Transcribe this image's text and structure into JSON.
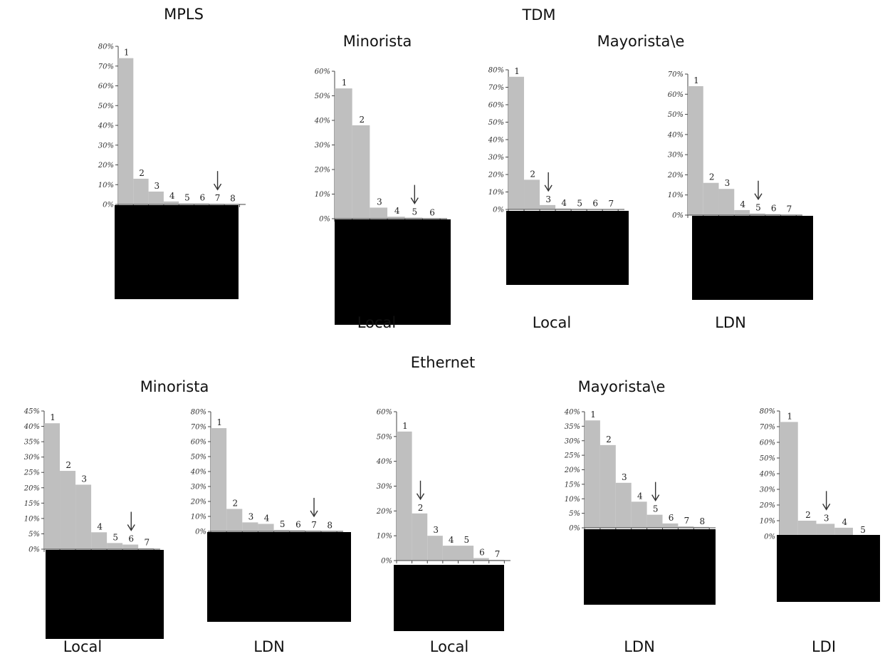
{
  "headers": {
    "mpls": "MPLS",
    "tdm": "TDM",
    "ethernet": "Ethernet",
    "tdm_minorista": "Minorista",
    "tdm_mayorista": "Mayorista\\e",
    "eth_minorista": "Minorista",
    "eth_mayorista": "Mayorista\\e"
  },
  "colors": {
    "bar": "#bfbfbf",
    "redaction": "#000000",
    "axis": "#444444"
  },
  "chart_data": [
    {
      "id": "mpls",
      "type": "bar",
      "title": "",
      "xlabel": "",
      "categories": [
        "1",
        "2",
        "3",
        "4",
        "5",
        "6",
        "7",
        "8"
      ],
      "values": [
        74,
        13,
        6.5,
        1.5,
        0.5,
        0.5,
        0.3,
        0.2
      ],
      "ylim": [
        0,
        80
      ],
      "yticks": [
        0,
        10,
        20,
        30,
        40,
        50,
        60,
        70,
        80
      ],
      "ytick_labels": [
        "0%",
        "10%",
        "20%",
        "30%",
        "40%",
        "50%",
        "60%",
        "70%",
        "80%"
      ],
      "arrow_at": "7",
      "grid": false
    },
    {
      "id": "tdm-minorista-local",
      "type": "bar",
      "title": "",
      "xlabel": "Local",
      "categories": [
        "1",
        "2",
        "3",
        "4",
        "5",
        "6"
      ],
      "values": [
        53,
        38,
        4.5,
        0.8,
        0.4,
        0.2
      ],
      "ylim": [
        0,
        60
      ],
      "yticks": [
        0,
        10,
        20,
        30,
        40,
        50,
        60
      ],
      "ytick_labels": [
        "0%",
        "10%",
        "20%",
        "30%",
        "40%",
        "50%",
        "60%"
      ],
      "arrow_at": "5",
      "grid": false
    },
    {
      "id": "tdm-mayorista-local",
      "type": "bar",
      "title": "",
      "xlabel": "Local",
      "categories": [
        "1",
        "2",
        "3",
        "4",
        "5",
        "6",
        "7"
      ],
      "values": [
        76,
        17,
        2.5,
        0.5,
        0.3,
        0.2,
        0.1
      ],
      "ylim": [
        0,
        80
      ],
      "yticks": [
        0,
        10,
        20,
        30,
        40,
        50,
        60,
        70,
        80
      ],
      "ytick_labels": [
        "0%",
        "10%",
        "20%",
        "30%",
        "40%",
        "50%",
        "60%",
        "70%",
        "80%"
      ],
      "arrow_at": "3",
      "grid": false
    },
    {
      "id": "tdm-mayorista-ldn",
      "type": "bar",
      "title": "",
      "xlabel": "LDN",
      "categories": [
        "1",
        "2",
        "3",
        "4",
        "5",
        "6",
        "7"
      ],
      "values": [
        64,
        16,
        13,
        2.5,
        0.8,
        0.5,
        0.2
      ],
      "ylim": [
        0,
        70
      ],
      "yticks": [
        0,
        10,
        20,
        30,
        40,
        50,
        60,
        70
      ],
      "ytick_labels": [
        "0%",
        "10%",
        "20%",
        "30%",
        "40%",
        "50%",
        "60%",
        "70%"
      ],
      "arrow_at": "5",
      "grid": false
    },
    {
      "id": "eth-minorista-local",
      "type": "bar",
      "title": "",
      "xlabel": "Local",
      "categories": [
        "1",
        "2",
        "3",
        "4",
        "5",
        "6",
        "7"
      ],
      "values": [
        41,
        25.5,
        21,
        5.5,
        2,
        1.5,
        0.3
      ],
      "ylim": [
        0,
        45
      ],
      "yticks": [
        0,
        5,
        10,
        15,
        20,
        25,
        30,
        35,
        40,
        45
      ],
      "ytick_labels": [
        "0%",
        "5%",
        "10%",
        "15%",
        "20%",
        "25%",
        "30%",
        "35%",
        "40%",
        "45%"
      ],
      "arrow_at": "6",
      "grid": false
    },
    {
      "id": "eth-minorista-ldn",
      "type": "bar",
      "title": "",
      "xlabel": "LDN",
      "categories": [
        "1",
        "2",
        "3",
        "4",
        "5",
        "6",
        "7",
        "8"
      ],
      "values": [
        69,
        15,
        6,
        5,
        1,
        0.8,
        0.5,
        0.3
      ],
      "ylim": [
        0,
        80
      ],
      "yticks": [
        0,
        10,
        20,
        30,
        40,
        50,
        60,
        70,
        80
      ],
      "ytick_labels": [
        "0%",
        "10%",
        "20%",
        "30%",
        "40%",
        "50%",
        "60%",
        "70%",
        "80%"
      ],
      "arrow_at": "7",
      "grid": false
    },
    {
      "id": "eth-minorista-local-2",
      "type": "bar",
      "title": "",
      "xlabel": "Local",
      "categories": [
        "1",
        "2",
        "3",
        "4",
        "5",
        "6",
        "7"
      ],
      "values": [
        52,
        19,
        10,
        6,
        6,
        1,
        0.3
      ],
      "ylim": [
        0,
        60
      ],
      "yticks": [
        0,
        10,
        20,
        30,
        40,
        50,
        60
      ],
      "ytick_labels": [
        "0%",
        "10%",
        "20%",
        "30%",
        "40%",
        "50%",
        "60%"
      ],
      "arrow_at": "2",
      "grid": false
    },
    {
      "id": "eth-mayorista-ldn",
      "type": "bar",
      "title": "",
      "xlabel": "LDN",
      "categories": [
        "1",
        "2",
        "3",
        "4",
        "5",
        "6",
        "7",
        "8"
      ],
      "values": [
        37,
        28.5,
        15.5,
        9,
        4.5,
        1.5,
        0.5,
        0.3
      ],
      "ylim": [
        0,
        40
      ],
      "yticks": [
        0,
        5,
        10,
        15,
        20,
        25,
        30,
        35,
        40
      ],
      "ytick_labels": [
        "0%",
        "5%",
        "10%",
        "15%",
        "20%",
        "25%",
        "30%",
        "35%",
        "40%"
      ],
      "arrow_at": "5",
      "grid": false
    },
    {
      "id": "eth-mayorista-ldi",
      "type": "bar",
      "title": "",
      "xlabel": "LDI",
      "categories": [
        "1",
        "2",
        "3",
        "4",
        "5"
      ],
      "values": [
        73,
        10,
        8,
        5.5,
        0.5
      ],
      "ylim": [
        0,
        80
      ],
      "yticks": [
        0,
        10,
        20,
        30,
        40,
        50,
        60,
        70,
        80
      ],
      "ytick_labels": [
        "0%",
        "10%",
        "20%",
        "30%",
        "40%",
        "50%",
        "60%",
        "70%",
        "80%"
      ],
      "arrow_at": "3",
      "grid": false
    }
  ]
}
